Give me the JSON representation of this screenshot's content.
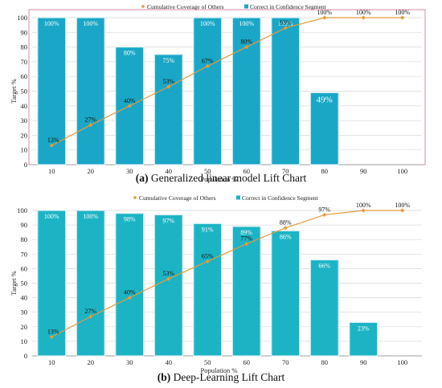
{
  "charts": [
    {
      "caption_letter": "(a)",
      "caption_text": " Generalized linear model Lift Chart",
      "chart_data": {
        "type": "bar",
        "categories": [
          "10",
          "20",
          "30",
          "40",
          "50",
          "60",
          "70",
          "80",
          "90",
          "100"
        ],
        "series": [
          {
            "name": "Correct in Confidence Segment",
            "values": [
              100,
              100,
              80,
              75,
              100,
              100,
              100,
              49,
              null,
              null
            ],
            "labels": [
              "100%",
              "100%",
              "80%",
              "75%",
              "100%",
              "100%",
              "100%",
              "49%",
              "",
              ""
            ]
          },
          {
            "name": "Cumulative Coverage of Others",
            "values": [
              13,
              27,
              40,
              53,
              67,
              80,
              93,
              100,
              100,
              100
            ],
            "labels": [
              "13%",
              "27%",
              "40%",
              "53%",
              "67%",
              "80%",
              "93%",
              "100%",
              "100%",
              "100%"
            ]
          }
        ],
        "legend": [
          "Cumulative Coverage of Others",
          "Correct in Confidence Segment"
        ],
        "legend_position": "top-center",
        "xlabel": "Population %",
        "ylabel": "Target %",
        "yticks": [
          "0",
          "10",
          "20",
          "30",
          "40",
          "50",
          "60",
          "70",
          "80",
          "90",
          "100"
        ],
        "ylim": [
          0,
          100
        ],
        "grid": true
      }
    },
    {
      "caption_letter": "(b)",
      "caption_text": " Deep-Learning Lift Chart",
      "chart_data": {
        "type": "bar",
        "categories": [
          "10",
          "20",
          "30",
          "40",
          "50",
          "60",
          "70",
          "80",
          "90",
          "100"
        ],
        "series": [
          {
            "name": "Correct in Confidence Segment",
            "values": [
              100,
              100,
              98,
              97,
              91,
              89,
              86,
              66,
              23,
              null
            ],
            "labels": [
              "100%",
              "100%",
              "98%",
              "97%",
              "91%",
              "89%",
              "86%",
              "66%",
              "23%",
              ""
            ]
          },
          {
            "name": "Cumulative Coverage of Others",
            "values": [
              13,
              27,
              40,
              53,
              65,
              77,
              88,
              97,
              100,
              100
            ],
            "labels": [
              "13%",
              "27%",
              "40%",
              "53%",
              "65%",
              "77%",
              "88%",
              "97%",
              "100%",
              "100%"
            ]
          }
        ],
        "legend": [
          "Cumulative Coverage of Others",
          "Correct in Confidence Segment"
        ],
        "legend_position": "top-center",
        "xlabel": "Population %",
        "ylabel": "Target %",
        "yticks": [
          "0",
          "10",
          "20",
          "30",
          "40",
          "50",
          "60",
          "70",
          "80",
          "90",
          "100"
        ],
        "ylim": [
          0,
          100
        ],
        "grid": true
      }
    }
  ],
  "colors": {
    "bar": "#1aa7c7",
    "bar_b": "#1cb4c5",
    "line": "#e69a3a",
    "border_a": "#d98aa8"
  }
}
